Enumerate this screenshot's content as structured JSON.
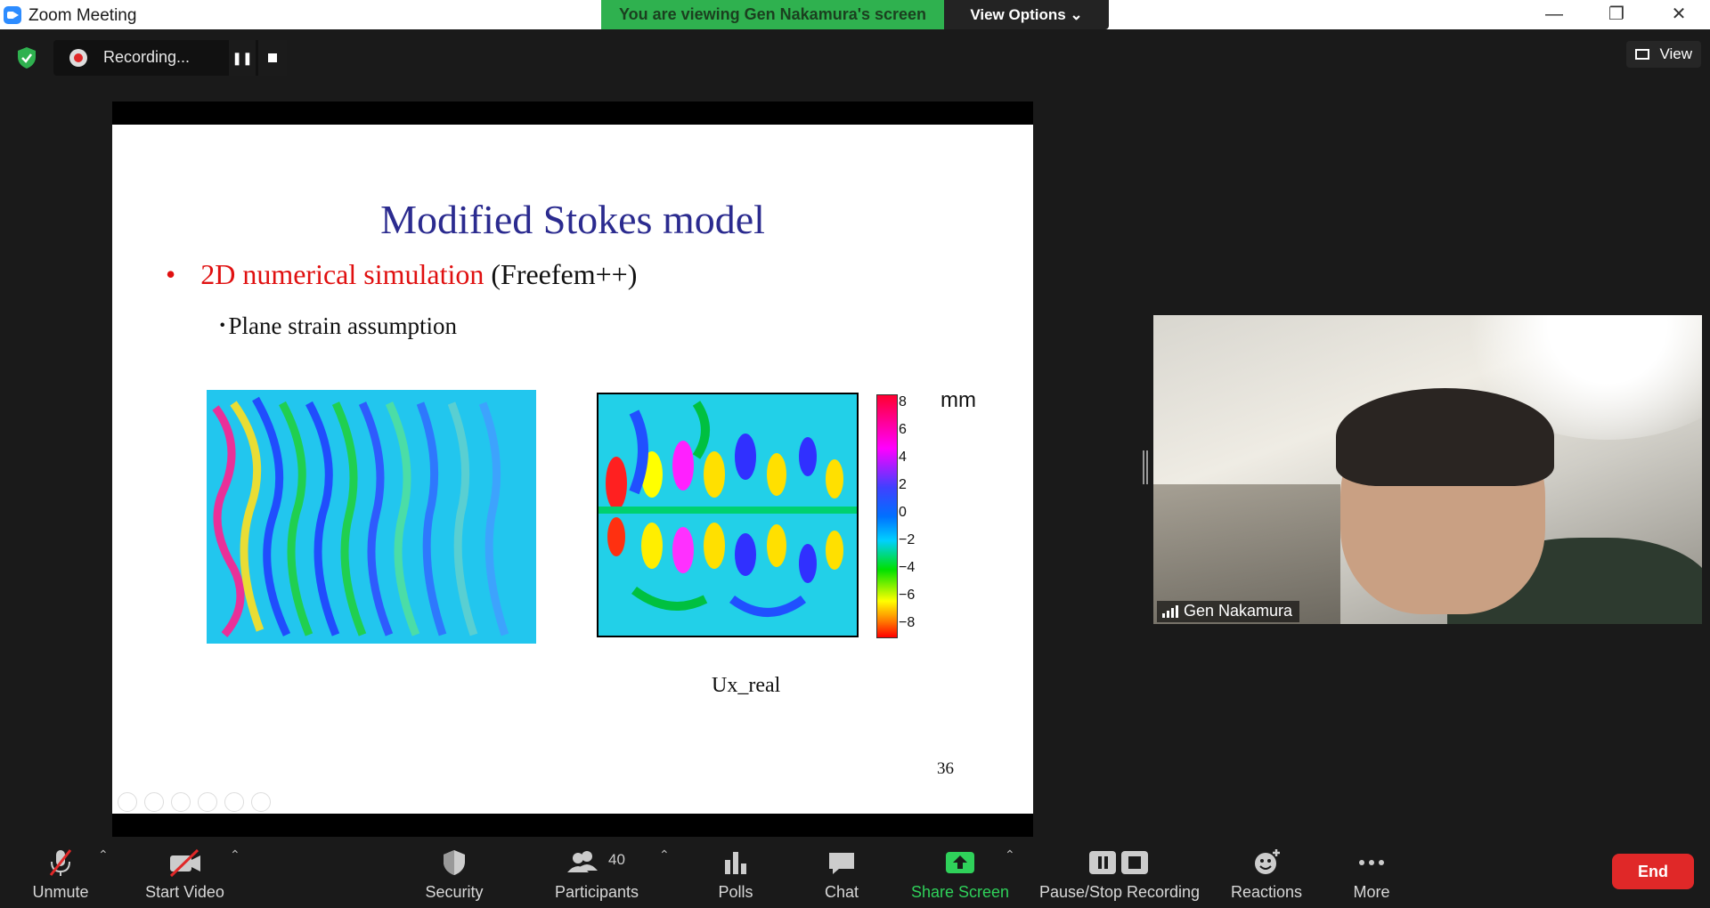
{
  "window": {
    "title": "Zoom Meeting",
    "minimize": "—",
    "restore": "❐",
    "close": "✕"
  },
  "banner": {
    "viewing": "You are viewing Gen Nakamura's screen",
    "view_options": "View Options ⌄"
  },
  "recording": {
    "status": "Recording...",
    "pause": "❚❚"
  },
  "view_button": "View",
  "slide": {
    "title": "Modified Stokes model",
    "bullet_red": "2D numerical simulation",
    "bullet_rest": " (Freefem++)",
    "sub_bullet": "･Plane strain assumption",
    "colorbar_ticks": [
      "8",
      "6",
      "4",
      "2",
      "0",
      "−2",
      "−4",
      "−6",
      "−8"
    ],
    "unit": "mm",
    "caption": "Ux_real",
    "page_number": "36"
  },
  "participant": {
    "name": "Gen Nakamura"
  },
  "toolbar": {
    "unmute": "Unmute",
    "start_video": "Start Video",
    "security": "Security",
    "participants": "Participants",
    "participants_count": "40",
    "polls": "Polls",
    "chat": "Chat",
    "share_screen": "Share Screen",
    "pause_stop_recording": "Pause/Stop Recording",
    "reactions": "Reactions",
    "more": "More",
    "end": "End"
  },
  "colors": {
    "banner_green": "#2fb14f",
    "end_red": "#e02828",
    "title_blue": "#2b2b8f",
    "bullet_red": "#e01010"
  }
}
